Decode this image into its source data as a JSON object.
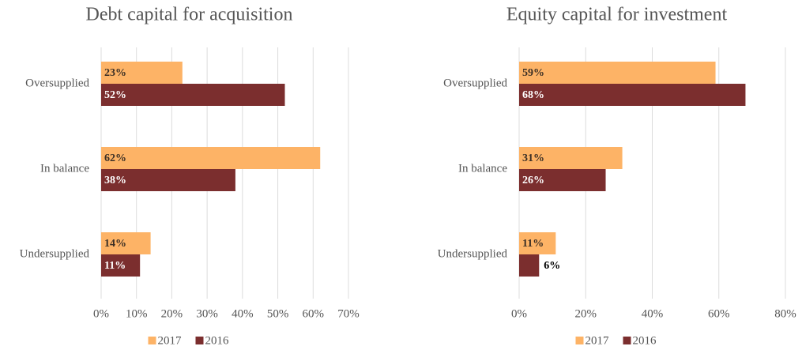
{
  "chart_data": [
    {
      "type": "bar",
      "orientation": "horizontal",
      "title": "Debt capital for acquisition",
      "categories": [
        "Oversupplied",
        "In balance",
        "Undersupplied"
      ],
      "series": [
        {
          "name": "2017",
          "color": "#fdb366",
          "values": [
            23,
            62,
            14
          ],
          "value_labels": [
            "23%",
            "62%",
            "14%"
          ]
        },
        {
          "name": "2016",
          "color": "#7b2e2e",
          "values": [
            52,
            38,
            11
          ],
          "value_labels": [
            "52%",
            "38%",
            "11%"
          ]
        }
      ],
      "xlim": [
        0,
        70
      ],
      "xticks": [
        {
          "value": 0,
          "label": "0%"
        },
        {
          "value": 10,
          "label": "10%"
        },
        {
          "value": 20,
          "label": "20%"
        },
        {
          "value": 30,
          "label": "30%"
        },
        {
          "value": 40,
          "label": "40%"
        },
        {
          "value": 50,
          "label": "50%"
        },
        {
          "value": 60,
          "label": "60%"
        },
        {
          "value": 70,
          "label": "70%"
        }
      ],
      "grid": true,
      "legend": "bottom"
    },
    {
      "type": "bar",
      "orientation": "horizontal",
      "title": "Equity capital for investment",
      "categories": [
        "Oversupplied",
        "In balance",
        "Undersupplied"
      ],
      "series": [
        {
          "name": "2017",
          "color": "#fdb366",
          "values": [
            59,
            31,
            11
          ],
          "value_labels": [
            "59%",
            "31%",
            "11%"
          ]
        },
        {
          "name": "2016",
          "color": "#7b2e2e",
          "values": [
            68,
            26,
            6
          ],
          "value_labels": [
            "68%",
            "26%",
            "6%"
          ]
        }
      ],
      "xlim": [
        0,
        80
      ],
      "xticks": [
        {
          "value": 0,
          "label": "0%"
        },
        {
          "value": 20,
          "label": "20%"
        },
        {
          "value": 40,
          "label": "40%"
        },
        {
          "value": 60,
          "label": "60%"
        },
        {
          "value": 80,
          "label": "80%"
        }
      ],
      "grid": true,
      "legend": "bottom"
    }
  ]
}
